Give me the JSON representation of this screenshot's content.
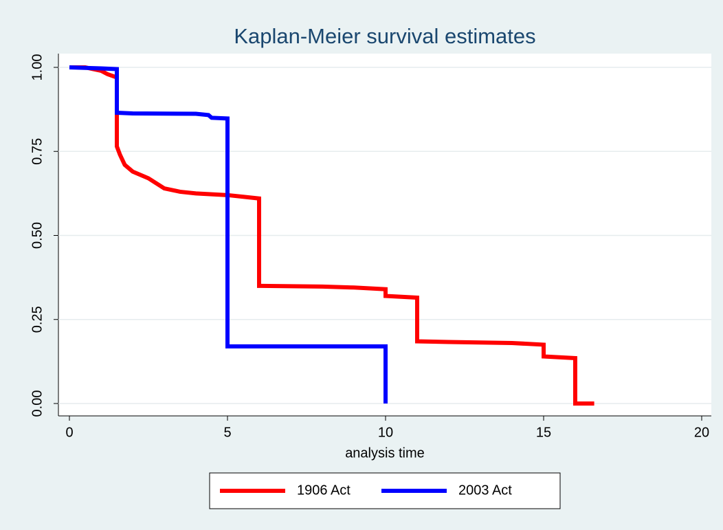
{
  "chart_data": {
    "type": "line",
    "title": "Kaplan-Meier survival estimates",
    "xlabel": "analysis time",
    "xlim": [
      0,
      20
    ],
    "xticks": [
      0,
      5,
      10,
      15,
      20
    ],
    "ylim": [
      0,
      1
    ],
    "yticks": [
      {
        "value": 0,
        "label": "0.00"
      },
      {
        "value": 0.25,
        "label": "0.25"
      },
      {
        "value": 0.5,
        "label": "0.50"
      },
      {
        "value": 0.75,
        "label": "0.75"
      },
      {
        "value": 1,
        "label": "1.00"
      }
    ],
    "grid": true,
    "legend": "bottom",
    "series": [
      {
        "name": "1906 Act",
        "color": "#ff0000",
        "x": [
          0,
          0.5,
          1,
          1.2,
          1.5,
          1.5,
          1.6,
          1.75,
          2,
          2.5,
          3,
          3.5,
          4,
          5,
          5.5,
          6,
          6,
          8,
          9,
          10,
          10,
          11,
          11,
          12,
          14,
          15,
          15,
          16,
          16,
          16.6
        ],
        "values": [
          1,
          1,
          0.99,
          0.98,
          0.97,
          0.765,
          0.74,
          0.71,
          0.69,
          0.67,
          0.64,
          0.63,
          0.625,
          0.62,
          0.615,
          0.61,
          0.35,
          0.348,
          0.345,
          0.34,
          0.32,
          0.315,
          0.185,
          0.183,
          0.18,
          0.175,
          0.14,
          0.135,
          0,
          0
        ]
      },
      {
        "name": "2003 Act",
        "color": "#0000ff",
        "x": [
          0,
          1,
          1.5,
          1.5,
          2,
          4,
          4.4,
          4.5,
          5,
          5,
          10,
          10
        ],
        "values": [
          1,
          0.997,
          0.995,
          0.865,
          0.863,
          0.862,
          0.858,
          0.85,
          0.848,
          0.17,
          0.17,
          0
        ]
      }
    ]
  }
}
